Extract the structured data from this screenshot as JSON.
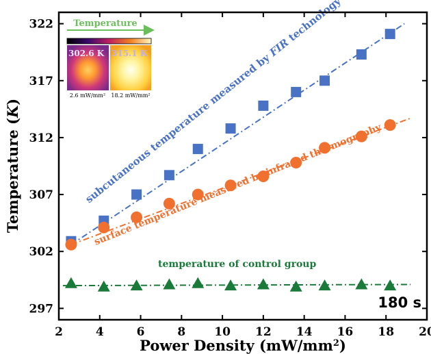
{
  "chart_data": {
    "type": "scatter",
    "xlabel": "Power Density (mW/mm²)",
    "ylabel": "Temperature (K)",
    "xlim": [
      2,
      20
    ],
    "ylim": [
      296,
      323
    ],
    "x_ticks": [
      "2",
      "4",
      "6",
      "8",
      "10",
      "12",
      "14",
      "16",
      "18",
      "20"
    ],
    "y_ticks": [
      "297",
      "302",
      "307",
      "312",
      "317",
      "322"
    ],
    "grid": false,
    "time_label": "180 s",
    "series": [
      {
        "marker": "square",
        "color": "#4a72c4",
        "label_parts": [
          "subcutaneous temperature measured by ",
          "FIR",
          " technology"
        ],
        "x": [
          2.6,
          4.2,
          5.8,
          7.4,
          8.8,
          10.4,
          12.0,
          13.6,
          15.0,
          16.8,
          18.2
        ],
        "y": [
          302.9,
          304.7,
          307.0,
          308.7,
          311.0,
          312.8,
          314.8,
          316.0,
          317.0,
          319.3,
          321.1
        ],
        "fit": {
          "x1": 2.6,
          "y1": 302.6,
          "x2": 18.9,
          "y2": 322.0
        }
      },
      {
        "marker": "circle",
        "color": "#f07030",
        "label_parts": [
          "surface temperature measured by infrared thermography"
        ],
        "x": [
          2.6,
          4.2,
          5.8,
          7.4,
          8.8,
          10.4,
          12.0,
          13.6,
          15.0,
          16.8,
          18.2
        ],
        "y": [
          302.6,
          304.1,
          305.0,
          306.2,
          307.0,
          307.8,
          308.6,
          309.8,
          311.1,
          312.1,
          313.1
        ],
        "fit": {
          "x1": 2.6,
          "y1": 302.6,
          "x2": 19.2,
          "y2": 313.7
        }
      },
      {
        "marker": "triangle",
        "color": "#1a7a3a",
        "label_parts": [
          "temperature of control group"
        ],
        "x": [
          2.6,
          4.2,
          5.8,
          7.4,
          8.8,
          10.4,
          12.0,
          13.6,
          15.0,
          16.8,
          18.2
        ],
        "y": [
          299.2,
          298.9,
          299.0,
          299.1,
          299.2,
          299.0,
          299.1,
          298.9,
          299.0,
          299.1,
          299.0
        ],
        "fit": {
          "x1": 2.2,
          "y1": 299.0,
          "x2": 19.2,
          "y2": 299.1
        }
      }
    ],
    "inset": {
      "title": "Temperature",
      "images": [
        {
          "temp_label": "302.6 K",
          "caption": "2.6 mW/mm²"
        },
        {
          "temp_label": "315.1 K",
          "caption": "18.2 mW/mm²"
        }
      ]
    }
  }
}
